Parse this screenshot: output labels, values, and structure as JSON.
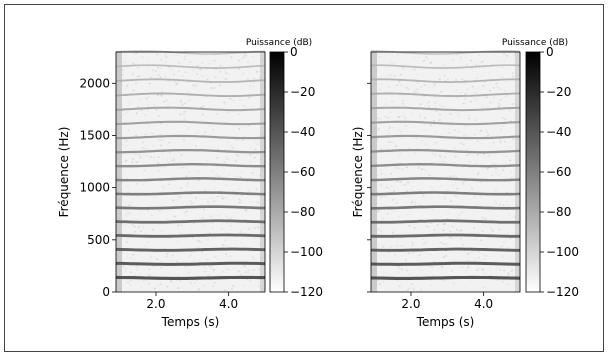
{
  "chart_data": [
    {
      "type": "heatmap",
      "xlabel": "Temps (s)",
      "ylabel": "Fréquence (Hz)",
      "xlim": [
        0.9,
        5.0
      ],
      "ylim": [
        0,
        2300
      ],
      "x_ticks": [
        {
          "value": 2.0,
          "label": "2.0"
        },
        {
          "value": 4.0,
          "label": "4.0"
        }
      ],
      "y_ticks": [
        {
          "value": 0,
          "label": "0"
        },
        {
          "value": 500,
          "label": "500"
        },
        {
          "value": 1000,
          "label": "1000"
        },
        {
          "value": 1500,
          "label": "1500"
        },
        {
          "value": 2000,
          "label": "2000"
        }
      ],
      "harmonic_spacing_hz": 135,
      "colorbar": {
        "title": "Puissance (dB)",
        "range": [
          -120,
          0
        ],
        "ticks": [
          {
            "value": 0,
            "label": "0"
          },
          {
            "value": -20,
            "label": "−20"
          },
          {
            "value": -40,
            "label": "−40"
          },
          {
            "value": -60,
            "label": "−60"
          },
          {
            "value": -80,
            "label": "−80"
          },
          {
            "value": -100,
            "label": "−100"
          },
          {
            "value": -120,
            "label": "−120"
          }
        ],
        "colormap": "gray_r"
      }
    },
    {
      "type": "heatmap",
      "xlabel": "Temps (s)",
      "ylabel": "Fréquence (Hz)",
      "xlim": [
        0.9,
        5.0
      ],
      "ylim": [
        0,
        2300
      ],
      "x_ticks": [
        {
          "value": 2.0,
          "label": "2.0"
        },
        {
          "value": 4.0,
          "label": "4.0"
        }
      ],
      "y_ticks": [
        {
          "value": 0,
          "label": ""
        },
        {
          "value": 500,
          "label": ""
        },
        {
          "value": 1000,
          "label": ""
        },
        {
          "value": 1500,
          "label": ""
        },
        {
          "value": 2000,
          "label": ""
        }
      ],
      "harmonic_spacing_hz": 135,
      "colorbar": {
        "title": "Puissance (dB)",
        "range": [
          -120,
          0
        ],
        "ticks": [
          {
            "value": 0,
            "label": "0"
          },
          {
            "value": -20,
            "label": "−20"
          },
          {
            "value": -40,
            "label": "−40"
          },
          {
            "value": -60,
            "label": "−60"
          },
          {
            "value": -80,
            "label": "−80"
          },
          {
            "value": -100,
            "label": "−100"
          },
          {
            "value": -120,
            "label": "−120"
          }
        ],
        "colormap": "gray_r"
      }
    }
  ]
}
